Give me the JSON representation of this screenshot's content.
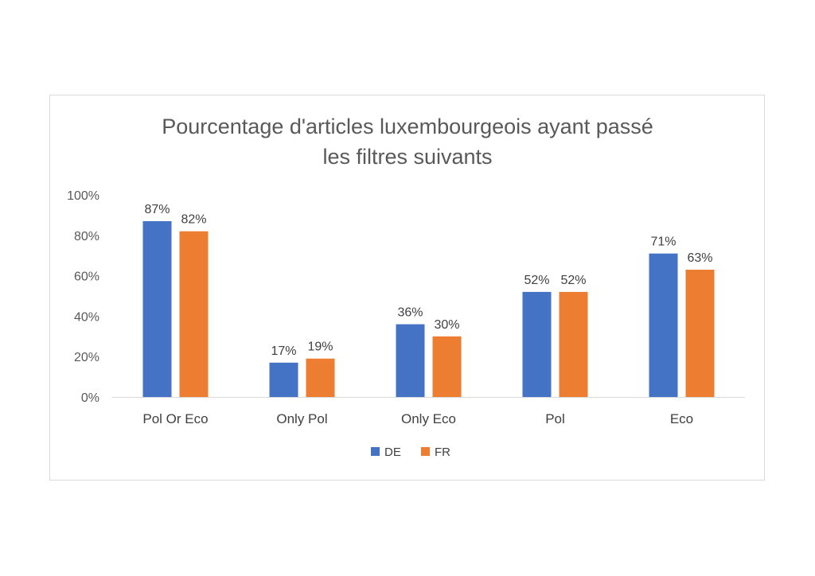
{
  "chart_data": {
    "type": "bar",
    "title_lines": [
      "Pourcentage d'articles luxembourgeois ayant passé",
      "les filtres suivants"
    ],
    "categories": [
      "Pol Or Eco",
      "Only Pol",
      "Only Eco",
      "Pol",
      "Eco"
    ],
    "series": [
      {
        "name": "DE",
        "color": "#4472C4",
        "values": [
          87,
          17,
          36,
          52,
          71
        ]
      },
      {
        "name": "FR",
        "color": "#ED7D31",
        "values": [
          82,
          19,
          30,
          52,
          63
        ]
      }
    ],
    "value_labels": [
      [
        "87%",
        "17%",
        "36%",
        "52%",
        "71%"
      ],
      [
        "82%",
        "19%",
        "30%",
        "52%",
        "63%"
      ]
    ],
    "y_ticks": [
      0,
      20,
      40,
      60,
      80,
      100
    ],
    "y_tick_labels": [
      "0%",
      "20%",
      "40%",
      "60%",
      "80%",
      "100%"
    ],
    "ylim": [
      0,
      100
    ],
    "grid": false,
    "legend_position": "bottom"
  }
}
